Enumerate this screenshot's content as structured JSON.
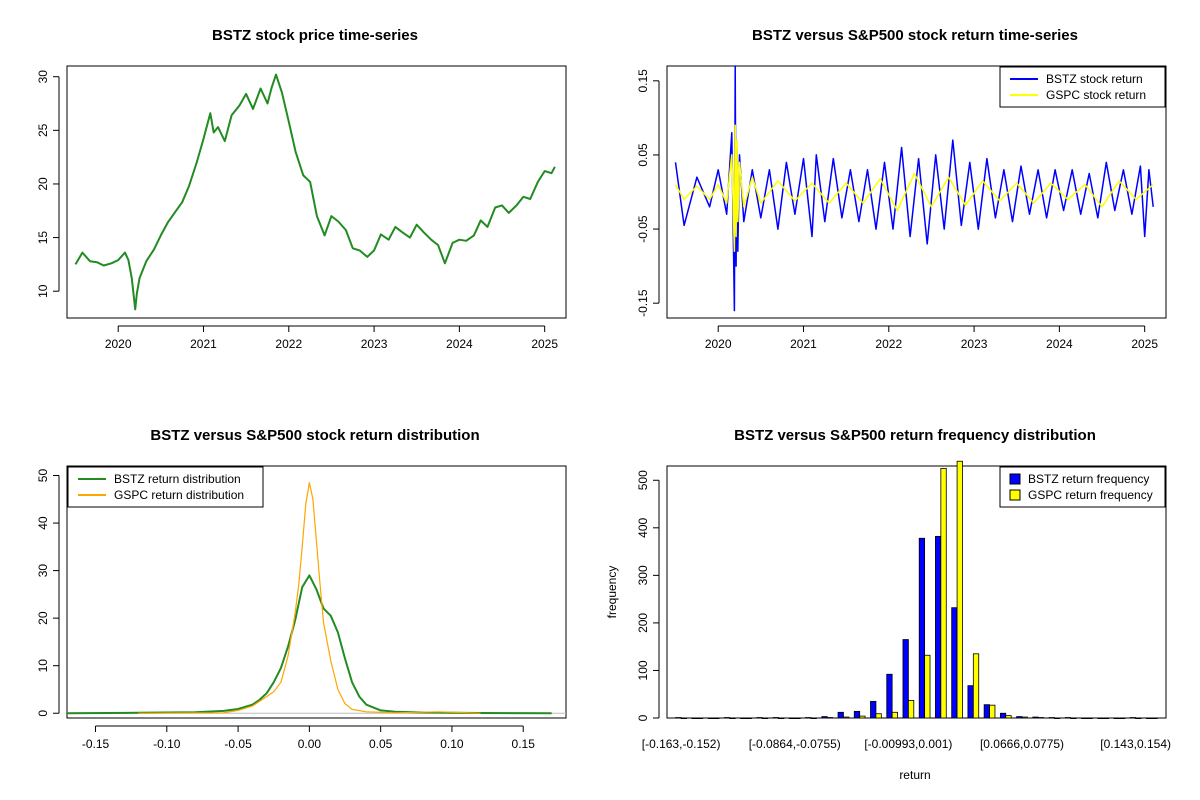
{
  "colors": {
    "bstz_price": "#228B22",
    "bstz_return": "#0000FF",
    "gspc_return": "#FFFF00",
    "bstz_density": "#228B22",
    "gspc_density": "#FFA500",
    "bar_bstz": "#0000FF",
    "bar_gspc": "#FFFF00"
  },
  "chart_data": [
    {
      "type": "line",
      "title": "BSTZ stock price time-series",
      "xlabel": "",
      "ylabel": "",
      "xlim": [
        2019.4,
        2025.25
      ],
      "ylim": [
        7.5,
        31
      ],
      "xticks": [
        2020,
        2021,
        2022,
        2023,
        2024,
        2025
      ],
      "xtick_labels": [
        "2020",
        "2021",
        "2022",
        "2023",
        "2024",
        "2025"
      ],
      "yticks": [
        10,
        15,
        20,
        25,
        30
      ],
      "ytick_labels": [
        "10",
        "15",
        "20",
        "25",
        "30"
      ],
      "series": [
        {
          "name": "BSTZ price",
          "x": [
            2019.5,
            2019.58,
            2019.67,
            2019.75,
            2019.83,
            2019.92,
            2020.0,
            2020.08,
            2020.12,
            2020.16,
            2020.2,
            2020.22,
            2020.25,
            2020.33,
            2020.42,
            2020.5,
            2020.58,
            2020.67,
            2020.75,
            2020.83,
            2020.92,
            2021.0,
            2021.08,
            2021.12,
            2021.17,
            2021.25,
            2021.33,
            2021.42,
            2021.5,
            2021.58,
            2021.67,
            2021.75,
            2021.8,
            2021.85,
            2021.92,
            2022.0,
            2022.08,
            2022.17,
            2022.25,
            2022.33,
            2022.42,
            2022.5,
            2022.58,
            2022.67,
            2022.75,
            2022.83,
            2022.92,
            2023.0,
            2023.08,
            2023.17,
            2023.25,
            2023.33,
            2023.42,
            2023.5,
            2023.58,
            2023.67,
            2023.75,
            2023.83,
            2023.92,
            2024.0,
            2024.08,
            2024.17,
            2024.25,
            2024.33,
            2024.42,
            2024.5,
            2024.58,
            2024.67,
            2024.75,
            2024.83,
            2024.92,
            2025.0,
            2025.08,
            2025.12
          ],
          "y": [
            12.5,
            13.6,
            12.8,
            12.7,
            12.4,
            12.6,
            12.9,
            13.6,
            12.9,
            11.2,
            8.3,
            9.8,
            11.2,
            12.8,
            13.9,
            15.2,
            16.4,
            17.4,
            18.3,
            19.8,
            22.0,
            24.2,
            26.6,
            24.8,
            25.3,
            24.0,
            26.4,
            27.3,
            28.4,
            27.0,
            28.9,
            27.5,
            29.0,
            30.2,
            28.5,
            25.8,
            23.0,
            20.8,
            20.2,
            17.0,
            15.2,
            17.0,
            16.5,
            15.7,
            14.0,
            13.8,
            13.2,
            13.8,
            15.3,
            14.8,
            16.0,
            15.5,
            15.0,
            16.2,
            15.5,
            14.8,
            14.3,
            12.6,
            14.5,
            14.8,
            14.7,
            15.2,
            16.6,
            16.0,
            17.8,
            18.0,
            17.3,
            18.0,
            18.8,
            18.6,
            20.2,
            21.2,
            21.0,
            21.6
          ]
        }
      ]
    },
    {
      "type": "line",
      "title": "BSTZ versus S&P500 stock return time-series",
      "xlabel": "",
      "ylabel": "",
      "xlim": [
        2019.4,
        2025.25
      ],
      "ylim": [
        -0.17,
        0.17
      ],
      "xticks": [
        2020,
        2021,
        2022,
        2023,
        2024,
        2025
      ],
      "xtick_labels": [
        "2020",
        "2021",
        "2022",
        "2023",
        "2024",
        "2025"
      ],
      "yticks": [
        -0.15,
        -0.05,
        0.05,
        0.15
      ],
      "ytick_labels": [
        "-0.15",
        "-0.05",
        "0.05",
        "0.15"
      ],
      "legend": {
        "position": "top-right",
        "entries": [
          {
            "label": "BSTZ stock return",
            "color": "#0000FF"
          },
          {
            "label": "GSPC stock return",
            "color": "#FFFF00"
          }
        ]
      },
      "series": [
        {
          "name": "BSTZ stock return",
          "x": [
            2019.5,
            2019.6,
            2019.75,
            2019.9,
            2020.0,
            2020.1,
            2020.16,
            2020.19,
            2020.2,
            2020.21,
            2020.22,
            2020.23,
            2020.25,
            2020.3,
            2020.4,
            2020.5,
            2020.6,
            2020.7,
            2020.8,
            2020.9,
            2021.0,
            2021.1,
            2021.15,
            2021.25,
            2021.35,
            2021.45,
            2021.55,
            2021.65,
            2021.75,
            2021.85,
            2021.95,
            2022.05,
            2022.15,
            2022.25,
            2022.35,
            2022.45,
            2022.55,
            2022.65,
            2022.75,
            2022.85,
            2022.95,
            2023.05,
            2023.15,
            2023.25,
            2023.35,
            2023.45,
            2023.55,
            2023.65,
            2023.75,
            2023.85,
            2023.95,
            2024.05,
            2024.15,
            2024.25,
            2024.35,
            2024.45,
            2024.55,
            2024.65,
            2024.75,
            2024.85,
            2024.95,
            2025.0,
            2025.05,
            2025.1
          ],
          "y": [
            0.04,
            -0.045,
            0.02,
            -0.02,
            0.03,
            -0.03,
            0.08,
            -0.16,
            0.17,
            -0.1,
            0.06,
            -0.08,
            0.05,
            -0.04,
            0.03,
            -0.035,
            0.03,
            -0.05,
            0.04,
            -0.03,
            0.045,
            -0.06,
            0.05,
            -0.04,
            0.045,
            -0.035,
            0.03,
            -0.04,
            0.03,
            -0.05,
            0.04,
            -0.05,
            0.06,
            -0.06,
            0.045,
            -0.07,
            0.05,
            -0.05,
            0.07,
            -0.045,
            0.04,
            -0.05,
            0.045,
            -0.035,
            0.03,
            -0.04,
            0.035,
            -0.03,
            0.03,
            -0.035,
            0.03,
            -0.025,
            0.03,
            -0.03,
            0.025,
            -0.035,
            0.04,
            -0.025,
            0.03,
            -0.03,
            0.035,
            -0.06,
            0.03,
            -0.02
          ]
        },
        {
          "name": "GSPC stock return",
          "x": [
            2019.5,
            2019.6,
            2019.75,
            2019.9,
            2020.0,
            2020.1,
            2020.16,
            2020.19,
            2020.2,
            2020.21,
            2020.22,
            2020.23,
            2020.25,
            2020.3,
            2020.4,
            2020.5,
            2020.7,
            2020.9,
            2021.1,
            2021.3,
            2021.5,
            2021.7,
            2021.9,
            2022.1,
            2022.3,
            2022.5,
            2022.7,
            2022.9,
            2023.1,
            2023.3,
            2023.5,
            2023.7,
            2023.9,
            2024.1,
            2024.3,
            2024.5,
            2024.7,
            2024.9,
            2025.1
          ],
          "y": [
            0.01,
            -0.01,
            0.008,
            -0.01,
            0.01,
            -0.015,
            0.05,
            -0.08,
            0.09,
            -0.06,
            0.07,
            -0.04,
            0.04,
            -0.02,
            0.02,
            -0.015,
            0.015,
            -0.012,
            0.012,
            -0.015,
            0.012,
            -0.015,
            0.018,
            -0.025,
            0.025,
            -0.02,
            0.02,
            -0.018,
            0.015,
            -0.012,
            0.012,
            -0.015,
            0.012,
            -0.01,
            0.01,
            -0.02,
            0.015,
            -0.01,
            0.01
          ]
        }
      ]
    },
    {
      "type": "line",
      "title": "BSTZ versus S&P500 stock return distribution",
      "xlabel": "",
      "ylabel": "",
      "xlim": [
        -0.17,
        0.18
      ],
      "ylim": [
        -1,
        52
      ],
      "xticks": [
        -0.15,
        -0.1,
        -0.05,
        0.0,
        0.05,
        0.1,
        0.15
      ],
      "xtick_labels": [
        "-0.15",
        "-0.10",
        "-0.05",
        "0.00",
        "0.05",
        "0.10",
        "0.15"
      ],
      "yticks": [
        0,
        10,
        20,
        30,
        40,
        50
      ],
      "ytick_labels": [
        "0",
        "10",
        "20",
        "30",
        "40",
        "50"
      ],
      "legend": {
        "position": "top-left",
        "entries": [
          {
            "label": "BSTZ return distribution",
            "color": "#228B22"
          },
          {
            "label": "GSPC return distribution",
            "color": "#FFA500"
          }
        ]
      },
      "series": [
        {
          "name": "BSTZ return distribution",
          "x": [
            -0.17,
            -0.12,
            -0.08,
            -0.06,
            -0.05,
            -0.04,
            -0.035,
            -0.03,
            -0.025,
            -0.02,
            -0.015,
            -0.01,
            -0.005,
            0.0,
            0.005,
            0.01,
            0.015,
            0.02,
            0.025,
            0.03,
            0.035,
            0.04,
            0.05,
            0.06,
            0.08,
            0.12,
            0.17
          ],
          "y": [
            0.0,
            0.1,
            0.2,
            0.5,
            0.9,
            1.8,
            2.8,
            4.2,
            6.5,
            9.5,
            14.0,
            19.5,
            26.5,
            29.0,
            26.0,
            22.0,
            20.5,
            17.0,
            11.5,
            6.5,
            3.5,
            1.8,
            0.6,
            0.3,
            0.15,
            0.05,
            0.0
          ]
        },
        {
          "name": "GSPC return distribution",
          "x": [
            -0.12,
            -0.06,
            -0.05,
            -0.04,
            -0.035,
            -0.03,
            -0.025,
            -0.02,
            -0.015,
            -0.01,
            -0.0075,
            -0.005,
            -0.0025,
            0.0,
            0.0025,
            0.005,
            0.0075,
            0.01,
            0.015,
            0.02,
            0.025,
            0.03,
            0.04,
            0.06,
            0.09,
            0.12
          ],
          "y": [
            0.0,
            0.1,
            0.6,
            1.5,
            2.5,
            3.5,
            4.5,
            6.5,
            12.0,
            21.0,
            27.0,
            35.0,
            44.0,
            48.5,
            45.0,
            36.0,
            27.0,
            19.0,
            11.0,
            5.0,
            2.0,
            0.8,
            0.3,
            0.1,
            0.3,
            0.0
          ]
        }
      ]
    },
    {
      "type": "bar",
      "title": "BSTZ versus S&P500 return frequency distribution",
      "xlabel": "return",
      "ylabel": "frequency",
      "ylim": [
        0,
        530
      ],
      "yticks": [
        0,
        100,
        200,
        300,
        400,
        500
      ],
      "ytick_labels": [
        "0",
        "100",
        "200",
        "300",
        "400",
        "500"
      ],
      "xtick_labels": [
        "[-0.163,-0.152)",
        "[-0.0864,-0.0755)",
        "[-0.00993,0.001)",
        "[0.0666,0.0775)",
        "[0.143,0.154)"
      ],
      "xtick_bins": [
        0,
        7,
        14,
        21,
        28
      ],
      "legend": {
        "position": "top-right",
        "entries": [
          {
            "label": "BSTZ return frequency",
            "color": "#0000FF"
          },
          {
            "label": "GSPC return frequency",
            "color": "#FFFF00"
          }
        ]
      },
      "categories_count": 30,
      "series": [
        {
          "name": "BSTZ return frequency",
          "values": [
            1,
            0,
            0,
            1,
            0,
            1,
            1,
            0,
            1,
            3,
            12,
            14,
            35,
            92,
            165,
            378,
            382,
            232,
            68,
            28,
            10,
            3,
            2,
            1,
            1,
            0,
            0,
            0,
            1,
            0
          ]
        },
        {
          "name": "GSPC return frequency",
          "values": [
            0,
            0,
            0,
            0,
            0,
            0,
            0,
            0,
            0,
            1,
            2,
            4,
            9,
            12,
            37,
            132,
            525,
            540,
            135,
            27,
            5,
            2,
            1,
            0,
            0,
            0,
            0,
            0,
            0,
            0
          ]
        }
      ]
    }
  ]
}
